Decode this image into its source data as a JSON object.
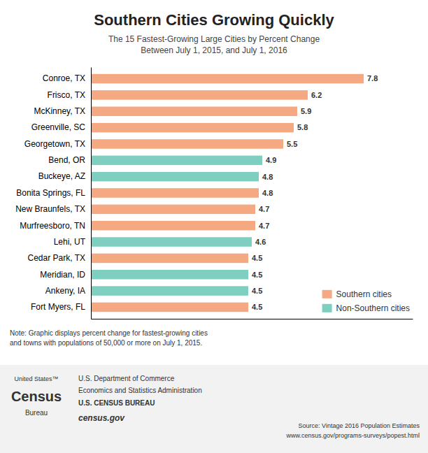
{
  "chart_data": {
    "type": "bar",
    "orientation": "horizontal",
    "stacked": true,
    "title": "Southern Cities Growing Quickly",
    "subtitle": "The 15 Fastest-Growing Large Cities by Percent Change\nBetween July 1, 2015, and July 1, 2016",
    "categories": [
      "Conroe, TX",
      "Frisco, TX",
      "McKinney, TX",
      "Greenville, SC",
      "Georgetown, TX",
      "Bend, OR",
      "Buckeye, AZ",
      "Bonita Springs, FL",
      "New Braunfels, TX",
      "Murfreesboro, TN",
      "Lehi, UT",
      "Cedar Park, TX",
      "Meridian, ID",
      "Ankeny, IA",
      "Fort Myers, FL"
    ],
    "series": [
      {
        "name": "Southern cities",
        "color": "#F4A983",
        "values": [
          7.8,
          6.2,
          5.9,
          5.8,
          5.5,
          null,
          null,
          4.8,
          4.7,
          4.7,
          null,
          4.5,
          null,
          null,
          4.5
        ]
      },
      {
        "name": "Non-Southern cities",
        "color": "#7ECFC0",
        "values": [
          null,
          null,
          null,
          null,
          null,
          4.9,
          4.8,
          null,
          null,
          null,
          4.6,
          null,
          4.5,
          4.5,
          null
        ]
      }
    ],
    "xlim": [
      0,
      9.2
    ],
    "xticks": [],
    "tick_labels": "y",
    "data_labels": true,
    "legend": "lower right",
    "grid": false,
    "annotations": [
      "Note: Graphic displays percent change for fastest-growing cities\nand towns with populations of 50,000 or more on July 1, 2015.",
      "United States™",
      "Census",
      "Bureau",
      "U.S. Department of Commerce",
      "Economics and Statistics Administration",
      "U.S. CENSUS BUREAU",
      "census.gov",
      "Source: Vintage 2016 Population Estimates\nwww.census.gov/programs-surveys/popest.html"
    ]
  }
}
